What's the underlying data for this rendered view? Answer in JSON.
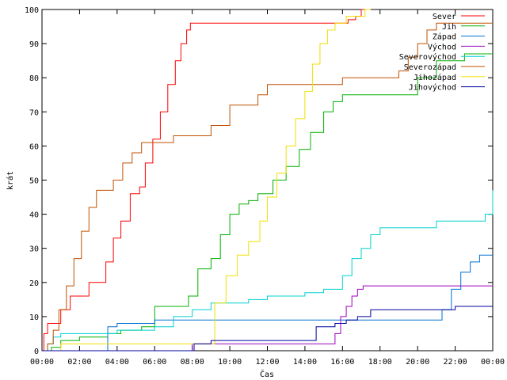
{
  "chart_data": {
    "type": "line",
    "xlabel": "Čas",
    "ylabel": "krát",
    "xlim": [
      0,
      24
    ],
    "ylim": [
      0,
      100
    ],
    "xticks": [
      0,
      2,
      4,
      6,
      8,
      10,
      12,
      14,
      16,
      18,
      20,
      22,
      24
    ],
    "xtick_labels": [
      "00:00",
      "02:00",
      "04:00",
      "06:00",
      "08:00",
      "10:00",
      "12:00",
      "14:00",
      "16:00",
      "18:00",
      "20:00",
      "22:00",
      "00:00"
    ],
    "yticks": [
      0,
      10,
      20,
      30,
      40,
      50,
      60,
      70,
      80,
      90,
      100
    ],
    "grid": false,
    "legend_position": "top-right",
    "series": [
      {
        "name": "Sever",
        "color": "#ff0000",
        "x": [
          0,
          0.1,
          0.3,
          0.5,
          1.0,
          1.5,
          1.9,
          2.5,
          3.0,
          3.4,
          3.8,
          4.2,
          4.7,
          5.2,
          5.5,
          5.9,
          6.3,
          6.7,
          7.1,
          7.4,
          7.7,
          7.9,
          8.3,
          10,
          12,
          14,
          16,
          16.3,
          16.7,
          17,
          17.2
        ],
        "values": [
          0,
          5,
          8,
          8,
          12,
          16,
          16,
          20,
          20,
          26,
          33,
          38,
          46,
          48,
          55,
          62,
          70,
          78,
          85,
          90,
          94,
          96,
          96,
          96,
          96,
          96,
          96,
          97,
          98,
          100,
          100
        ]
      },
      {
        "name": "Jih",
        "color": "#00b000",
        "x": [
          0,
          0.5,
          1.0,
          2.0,
          3.5,
          4.2,
          5.3,
          6.0,
          7.0,
          7.8,
          8.3,
          9.0,
          9.5,
          10.0,
          10.5,
          11.0,
          11.5,
          12.3,
          13.0,
          13.7,
          14.3,
          15.0,
          15.5,
          16.0,
          17.5,
          19.0,
          20.0,
          21.0,
          22.5,
          24.0
        ],
        "values": [
          0,
          1,
          3,
          4,
          5,
          6,
          7,
          13,
          13,
          16,
          24,
          27,
          34,
          40,
          43,
          44,
          46,
          50,
          54,
          59,
          64,
          70,
          73,
          75,
          75,
          75,
          80,
          85,
          87,
          87
        ]
      },
      {
        "name": "Západ",
        "color": "#0070d0",
        "x": [
          0,
          0.5,
          1.0,
          2.0,
          3.0,
          3.5,
          4.0,
          5.0,
          6.0,
          7.0,
          8.0,
          10.0,
          12.0,
          14.0,
          16.0,
          18.0,
          20.0,
          20.8,
          21.3,
          21.8,
          22.3,
          22.8,
          23.3,
          24.0
        ],
        "values": [
          0,
          0,
          0,
          0,
          0,
          7,
          8,
          8,
          9,
          9,
          9,
          9,
          9,
          9,
          9,
          9,
          9,
          9,
          12,
          18,
          23,
          26,
          28,
          28
        ]
      },
      {
        "name": "Východ",
        "color": "#a000c0",
        "x": [
          0,
          8.0,
          10.0,
          12.0,
          14.0,
          15.3,
          15.6,
          15.9,
          16.2,
          16.5,
          16.8,
          17.1,
          18.0,
          20.0,
          22.0,
          24.0
        ],
        "values": [
          0,
          2,
          2,
          2,
          2,
          2,
          5,
          10,
          13,
          16,
          18,
          19,
          19,
          19,
          19,
          19
        ]
      },
      {
        "name": "Severovýchod",
        "color": "#00d0d0",
        "x": [
          0,
          0.3,
          0.6,
          1.0,
          2.0,
          3.0,
          4.0,
          5.0,
          6.0,
          7.0,
          8.0,
          9.0,
          10.0,
          11.0,
          12.0,
          13.0,
          14.0,
          15.0,
          16.0,
          16.5,
          17.0,
          17.5,
          18.0,
          19.0,
          20.0,
          21.0,
          22.0,
          23.0,
          23.6,
          24.0
        ],
        "values": [
          0,
          2,
          4,
          5,
          5,
          5,
          6,
          6,
          7,
          10,
          12,
          14,
          14,
          15,
          16,
          16,
          17,
          18,
          22,
          27,
          30,
          34,
          36,
          36,
          36,
          38,
          38,
          38,
          40,
          47
        ]
      },
      {
        "name": "Severozápad",
        "color": "#c05000",
        "x": [
          0,
          0.3,
          0.6,
          0.9,
          1.3,
          1.7,
          2.1,
          2.5,
          2.9,
          3.3,
          3.8,
          4.3,
          4.8,
          5.3,
          5.8,
          6.5,
          7.0,
          7.5,
          8.0,
          9.0,
          10.0,
          10.8,
          11.5,
          12.0,
          13.0,
          14.0,
          15.0,
          16.0,
          17.0,
          18.0,
          19.0,
          19.5,
          20.0,
          20.5,
          21.0,
          22.0,
          23.0,
          24.0
        ],
        "values": [
          0,
          2,
          6,
          12,
          19,
          27,
          35,
          42,
          47,
          47,
          50,
          55,
          58,
          61,
          61,
          61,
          63,
          63,
          63,
          66,
          72,
          72,
          75,
          78,
          78,
          78,
          78,
          80,
          80,
          80,
          82,
          86,
          90,
          94,
          96,
          96,
          96,
          96
        ]
      },
      {
        "name": "Jihozápad",
        "color": "#f0e000",
        "x": [
          0,
          0.7,
          1.0,
          2.0,
          4.0,
          6.0,
          8.0,
          8.7,
          9.2,
          9.8,
          10.4,
          11.0,
          11.6,
          12.0,
          12.5,
          13.0,
          13.5,
          14.0,
          14.4,
          14.8,
          15.2,
          15.6,
          16.2,
          16.8,
          17.2,
          17.5
        ],
        "values": [
          0,
          0,
          2,
          2,
          2,
          2,
          2,
          2,
          14,
          22,
          28,
          32,
          38,
          45,
          52,
          60,
          68,
          76,
          84,
          90,
          94,
          96,
          98,
          98,
          100,
          100
        ]
      },
      {
        "name": "Jihovýchod",
        "color": "#0000a0",
        "x": [
          0,
          0.5,
          2.0,
          4.0,
          6.0,
          7.9,
          8.1,
          9.0,
          10.0,
          11.0,
          12.0,
          13.0,
          14.0,
          14.6,
          15.0,
          15.6,
          16.2,
          16.8,
          17.5,
          18.0,
          19.0,
          20.0,
          21.0,
          22.0,
          23.0,
          24.0
        ],
        "values": [
          0,
          0,
          0,
          0,
          0,
          0,
          2,
          3,
          3,
          3,
          3,
          3,
          3,
          7,
          7,
          8,
          9,
          10,
          12,
          12,
          12,
          12,
          12,
          13,
          13,
          13
        ]
      }
    ]
  }
}
